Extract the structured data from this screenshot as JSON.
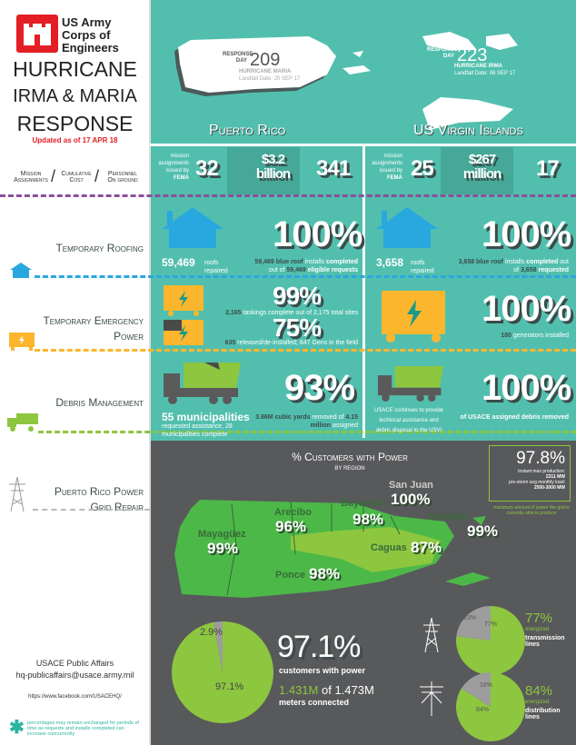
{
  "header": {
    "org": "US Army Corps of Engineers",
    "title_1": "HURRICANE",
    "title_2": "IRMA & MARIA",
    "title_3": "RESPONSE",
    "updated": "Updated as of 17 APR 18"
  },
  "legend": {
    "mission": "Mission Assignments",
    "cost": "Cumulative Cost",
    "personnel": "Personnel On ground",
    "slash": "/"
  },
  "puerto_rico": {
    "name": "Puerto Rico",
    "response_day_label": "RESPONSE DAY",
    "response_day": "209",
    "hurricane": "HURRICANE MARIA",
    "landfall": "Landfall Date: 20 SEP 17",
    "mission_label": "mission assignments issued by",
    "fema": "FEMA",
    "missions": "32",
    "cost": "$3.2",
    "cost_unit": "billion",
    "personnel": "341",
    "roofs": "59,469",
    "roofs_label": "roofs repaired",
    "roof_pct": "100%",
    "roof_detail_a": "59,469 blue roof",
    "roof_detail_b": " installs ",
    "roof_detail_c": "completed",
    "roof_detail_d": " out of ",
    "roof_detail_e": "59,469",
    "roof_detail_f": " eligible requests",
    "power_pct_1": "99%",
    "power_detail_1a": "2,165",
    "power_detail_1b": " taskings complete out of 2,175 total sites",
    "power_pct_2": "75%",
    "power_detail_2a": "635",
    "power_detail_2b": " released/de-installed; 847 Gens in the field",
    "debris_munis": "55 municipalities",
    "debris_munis_detail": "requested assistance, 28 municipalities complete",
    "debris_pct": "93%",
    "debris_detail_a": "3.86M cubic yards",
    "debris_detail_b": " removed of ",
    "debris_detail_c": "4.15 million",
    "debris_detail_d": " assigned"
  },
  "usvi": {
    "name": "US Virgin Islands",
    "response_day_label": "RESPONSE DAY",
    "response_day": "223",
    "hurricane": "HURRICANE IRMA",
    "landfall": "Landfall Date: 06 SEP 17",
    "mission_label": "mission assignments issued by",
    "fema": "FEMA",
    "missions": "25",
    "cost": "$267",
    "cost_unit": "million",
    "personnel": "17",
    "roofs": "3,658",
    "roofs_label": "roofs repaired",
    "roof_pct": "100%",
    "roof_detail_a": "3,658 blue roof",
    "roof_detail_b": " installs ",
    "roof_detail_c": "completed",
    "roof_detail_d": " out of ",
    "roof_detail_e": "3,658",
    "roof_detail_f": " requested",
    "power_pct": "100%",
    "power_detail_a": "180",
    "power_detail_b": " generators installed",
    "debris_text": "USACE continues to provide techincal assistance and debris disposal to the USVI",
    "debris_pct": "100%",
    "debris_detail": "of USACE assigned debris removed"
  },
  "sections": {
    "roofing": "Temporary Roofing",
    "power": "Temporary Emergency Power",
    "debris": "Debris Management",
    "grid": "Puerto Rico Power Grid Repair"
  },
  "colors": {
    "teal": "#52bfae",
    "dark": "#58595b",
    "green": "#4cb848",
    "lightgreen": "#8dc63f",
    "blue": "#29a8e0",
    "orange": "#fbb62d",
    "purple": "#8b4f9f",
    "red": "#e31e24"
  },
  "grid": {
    "title": "% Customers with Power",
    "subtitle": "BY REGION",
    "regions": [
      {
        "name": "Mayagüez",
        "pct": "99%"
      },
      {
        "name": "Arecibo",
        "pct": "96%"
      },
      {
        "name": "Bayamón",
        "pct": "98%"
      },
      {
        "name": "San Juan",
        "pct": "100%"
      },
      {
        "name": "Carolina",
        "pct": "99%"
      },
      {
        "name": "Caguas",
        "pct": "87%"
      },
      {
        "name": "Ponce",
        "pct": "98%"
      }
    ],
    "capacity_pct": "97.8%",
    "capacity_l1": "instant max production:",
    "capacity_v1": "2311 MW",
    "capacity_l2": "pre-storm avg monthly load:",
    "capacity_v2": "2500-3000 MW",
    "capacity_note": "maximum amount of power the grid is currently able to produce",
    "customers_pct": "97.1%",
    "customers_label": "customers with power",
    "meters_a": "1.431M",
    "meters_b": " of 1.473M",
    "meters_label": "meters connected",
    "transmission_pct": "77%",
    "transmission_label": "energized",
    "transmission_name": "transmission lines",
    "distribution_pct": "84%",
    "distribution_label": "energized",
    "distribution_name": "distribution lines"
  },
  "chart_data": [
    {
      "type": "pie",
      "slices": [
        {
          "label": "97.1%",
          "value": 97.1
        },
        {
          "label": "2.9%",
          "value": 2.9
        }
      ]
    },
    {
      "type": "pie",
      "slices": [
        {
          "label": "77%",
          "value": 77
        },
        {
          "label": "23%",
          "value": 23
        }
      ]
    },
    {
      "type": "pie",
      "slices": [
        {
          "label": "84%",
          "value": 84
        },
        {
          "label": "16%",
          "value": 16
        }
      ]
    }
  ],
  "footer": {
    "contact": "USACE Public Affairs",
    "email": "hq-publicaffairs@usace.army.mil",
    "facebook": "https://www.facebook.com/USACEHQ/",
    "note": "percentages may remain unchanged for periods of time as requests and installs completed can increase concurrently"
  }
}
